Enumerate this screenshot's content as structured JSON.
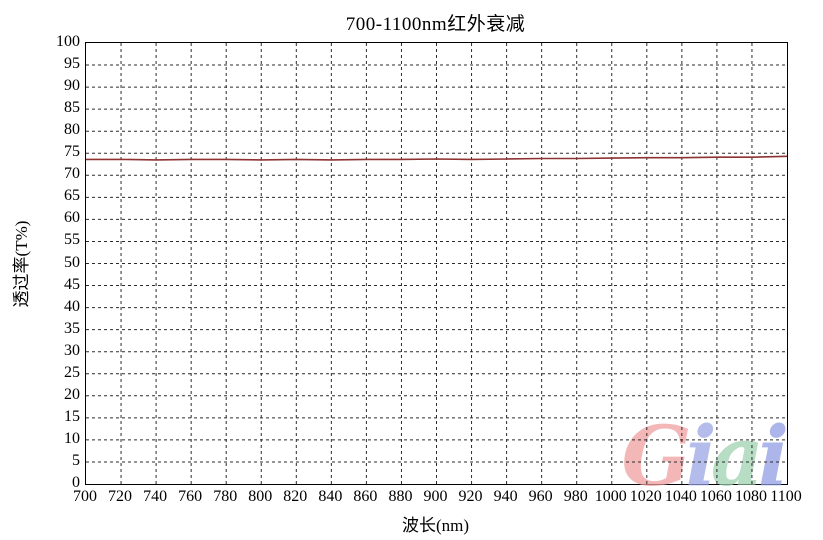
{
  "figure": {
    "background": "#ffffff",
    "border_color": "#000000",
    "grid_color": "#2b2b2b"
  },
  "watermark": {
    "text": "Giai",
    "letters": [
      {
        "char": "G",
        "color": "#f09c9c"
      },
      {
        "char": "i",
        "color": "#98a3e6"
      },
      {
        "char": "a",
        "color": "#9cd2ae"
      },
      {
        "char": "i",
        "color": "#8d9ae2"
      }
    ]
  },
  "chart_data": {
    "type": "line",
    "title": "700-1100nm红外衰减",
    "xlabel": "波长(nm)",
    "ylabel": "透过率(T%)",
    "xlim": [
      700,
      1100
    ],
    "ylim": [
      0,
      100
    ],
    "x_tick_step": 20,
    "y_tick_step": 5,
    "x_ticks": [
      700,
      720,
      740,
      760,
      780,
      800,
      820,
      840,
      860,
      880,
      900,
      920,
      940,
      960,
      980,
      1000,
      1020,
      1040,
      1060,
      1080,
      1100
    ],
    "y_ticks": [
      0,
      5,
      10,
      15,
      20,
      25,
      30,
      35,
      40,
      45,
      50,
      55,
      60,
      65,
      70,
      75,
      80,
      85,
      90,
      95,
      100
    ],
    "grid": "dashed",
    "legend": "none",
    "line_color": "#8e3232",
    "series": [
      {
        "name": "透过率",
        "x": [
          700,
          720,
          740,
          760,
          780,
          800,
          820,
          840,
          860,
          880,
          900,
          920,
          940,
          960,
          980,
          1000,
          1020,
          1040,
          1060,
          1080,
          1100
        ],
        "y": [
          73.6,
          73.6,
          73.5,
          73.6,
          73.6,
          73.5,
          73.6,
          73.5,
          73.6,
          73.6,
          73.7,
          73.6,
          73.7,
          73.8,
          73.8,
          73.9,
          74.0,
          74.0,
          74.1,
          74.1,
          74.3
        ]
      }
    ]
  }
}
